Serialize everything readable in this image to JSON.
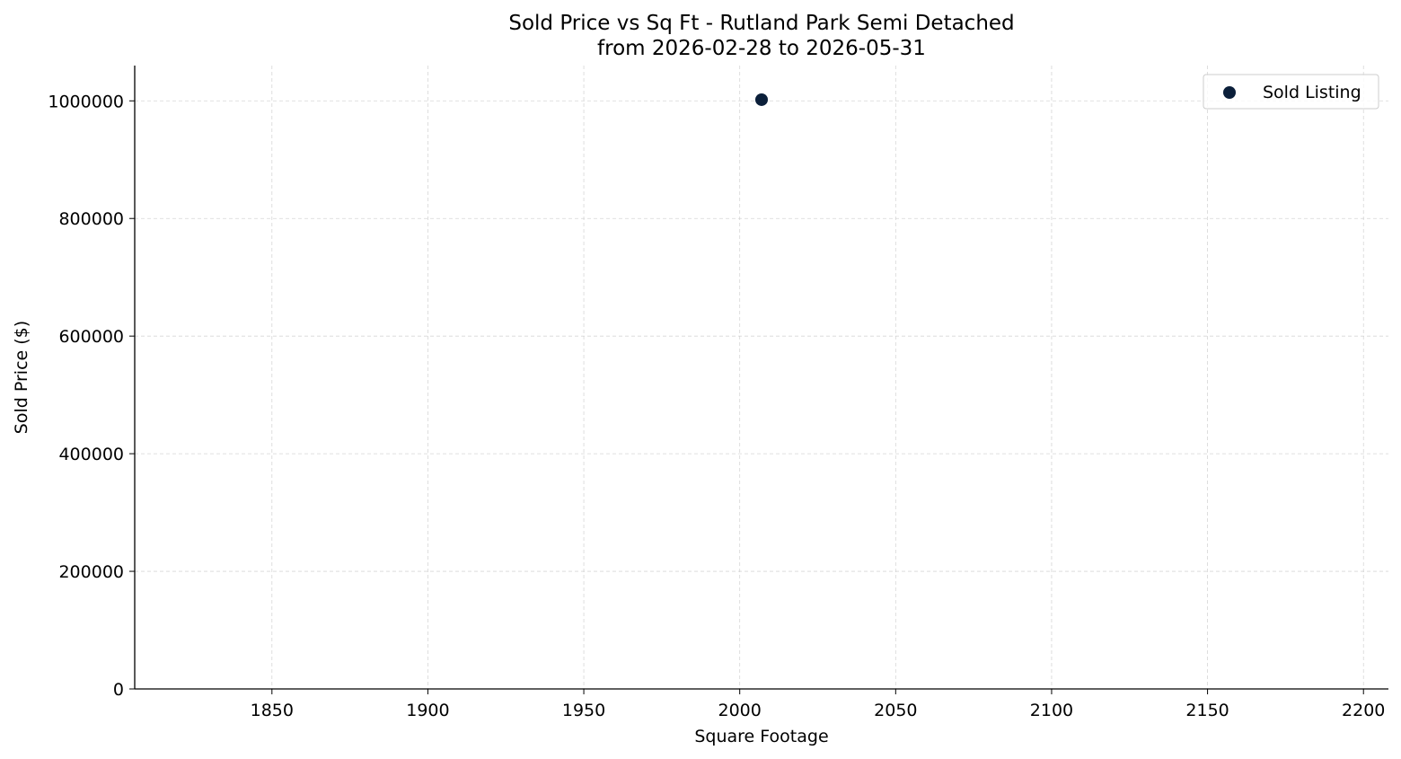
{
  "chart_data": {
    "type": "scatter",
    "title": "Sold Price vs Sq Ft - Rutland Park Semi Detached",
    "subtitle": "from 2026-02-28 to 2026-05-31",
    "xlabel": "Square Footage",
    "ylabel": "Sold Price ($)",
    "xlim": [
      1806,
      2208
    ],
    "ylim": [
      0,
      1060000
    ],
    "xticks": [
      1850,
      1900,
      1950,
      2000,
      2050,
      2100,
      2150,
      2200
    ],
    "xtick_labels": [
      "1850",
      "1900",
      "1950",
      "2000",
      "2050",
      "2100",
      "2150",
      "2200"
    ],
    "yticks": [
      0,
      200000,
      400000,
      600000,
      800000,
      1000000
    ],
    "ytick_labels": [
      "0",
      "200000",
      "400000",
      "600000",
      "800000",
      "1000000"
    ],
    "grid": true,
    "legend_position": "top-right",
    "series": [
      {
        "name": "Sold Listing",
        "color": "#0b1f3a",
        "points": [
          {
            "x": 2007,
            "y": 1002000
          }
        ]
      }
    ]
  }
}
